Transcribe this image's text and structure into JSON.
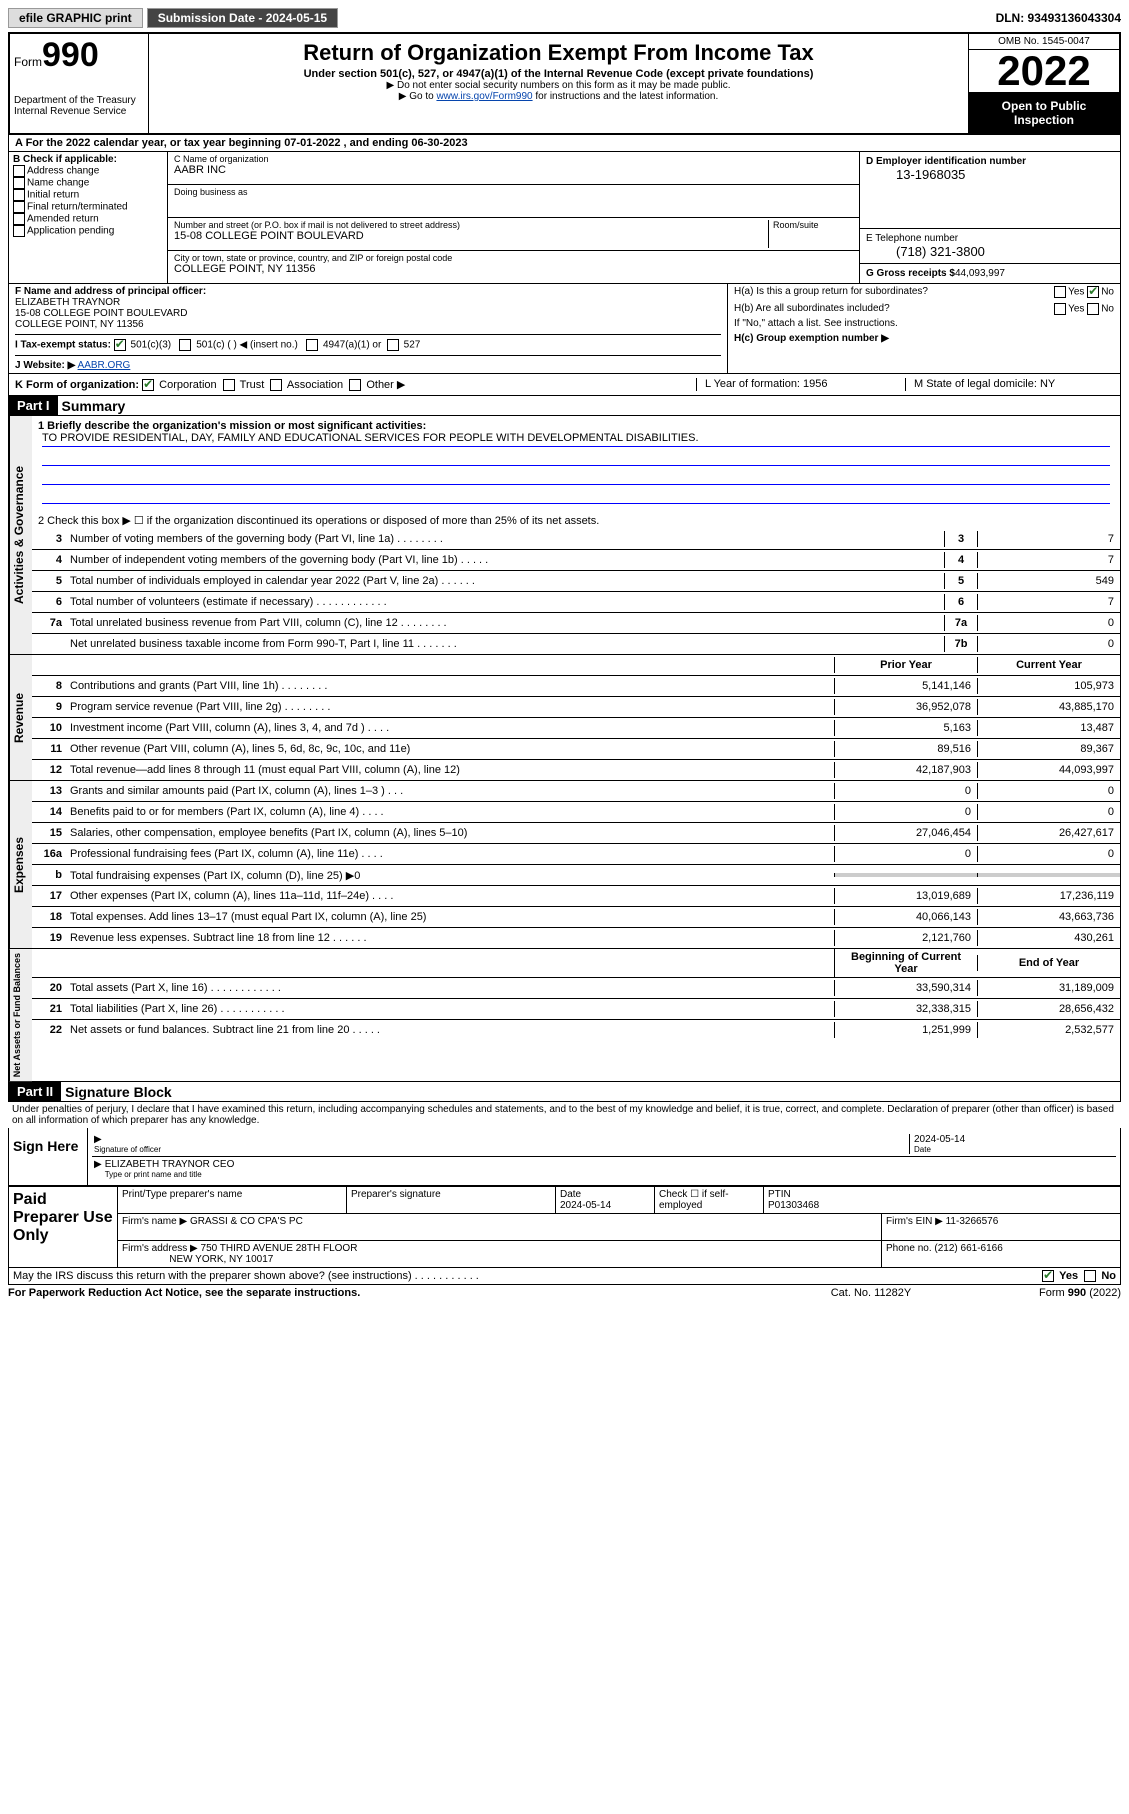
{
  "topbar": {
    "efile": "efile GRAPHIC print",
    "submission_label": "Submission Date - 2024-05-15",
    "dln": "DLN: 93493136043304"
  },
  "header": {
    "form_label": "Form",
    "form_num": "990",
    "dept": "Department of the Treasury Internal Revenue Service",
    "title": "Return of Organization Exempt From Income Tax",
    "subtitle": "Under section 501(c), 527, or 4947(a)(1) of the Internal Revenue Code (except private foundations)",
    "note1": "▶ Do not enter social security numbers on this form as it may be made public.",
    "note2_pre": "▶ Go to ",
    "note2_link": "www.irs.gov/Form990",
    "note2_post": " for instructions and the latest information.",
    "omb": "OMB No. 1545-0047",
    "year": "2022",
    "open": "Open to Public Inspection"
  },
  "row_a": "A For the 2022 calendar year, or tax year beginning 07-01-2022   , and ending 06-30-2023",
  "section_b": {
    "label": "B Check if applicable:",
    "items": [
      "Address change",
      "Name change",
      "Initial return",
      "Final return/terminated",
      "Amended return",
      "Application pending"
    ]
  },
  "section_c": {
    "name_label": "C Name of organization",
    "name": "AABR INC",
    "dba_label": "Doing business as",
    "dba": "",
    "addr_label": "Number and street (or P.O. box if mail is not delivered to street address)",
    "room_label": "Room/suite",
    "addr": "15-08 COLLEGE POINT BOULEVARD",
    "city_label": "City or town, state or province, country, and ZIP or foreign postal code",
    "city": "COLLEGE POINT, NY  11356"
  },
  "section_d": {
    "label": "D Employer identification number",
    "val": "13-1968035"
  },
  "section_e": {
    "label": "E Telephone number",
    "val": "(718) 321-3800"
  },
  "section_g": {
    "label": "G Gross receipts $",
    "val": "44,093,997"
  },
  "section_f": {
    "label": "F Name and address of principal officer:",
    "name": "ELIZABETH TRAYNOR",
    "addr1": "15-08 COLLEGE POINT BOULEVARD",
    "addr2": "COLLEGE POINT, NY  11356"
  },
  "section_h": {
    "ha": "H(a)  Is this a group return for subordinates?",
    "hb": "H(b)  Are all subordinates included?",
    "hb_note": "If \"No,\" attach a list. See instructions.",
    "hc": "H(c)  Group exemption number ▶",
    "yes": "Yes",
    "no": "No"
  },
  "status": {
    "label": "I   Tax-exempt status:",
    "opt1": "501(c)(3)",
    "opt2": "501(c) (   ) ◀ (insert no.)",
    "opt3": "4947(a)(1) or",
    "opt4": "527"
  },
  "website": {
    "label": "J   Website: ▶",
    "val": "AABR.ORG"
  },
  "korg": {
    "k_label": "K Form of organization:",
    "corp": "Corporation",
    "trust": "Trust",
    "assoc": "Association",
    "other": "Other ▶",
    "l": "L Year of formation: 1956",
    "m": "M State of legal domicile: NY"
  },
  "part1": {
    "header": "Part I",
    "title": "Summary",
    "line1_label": "1   Briefly describe the organization's mission or most significant activities:",
    "mission": "TO PROVIDE RESIDENTIAL, DAY, FAMILY AND EDUCATIONAL SERVICES FOR PEOPLE WITH DEVELOPMENTAL DISABILITIES.",
    "line2": "2   Check this box ▶ ☐  if the organization discontinued its operations or disposed of more than 25% of its net assets.",
    "sections": {
      "gov": "Activities & Governance",
      "rev": "Revenue",
      "exp": "Expenses",
      "net": "Net Assets or Fund Balances"
    },
    "one_col": [
      {
        "n": "3",
        "d": "Number of voting members of the governing body (Part VI, line 1a)   .    .    .    .    .    .    .    .",
        "b": "3",
        "v": "7"
      },
      {
        "n": "4",
        "d": "Number of independent voting members of the governing body (Part VI, line 1b)   .    .    .    .    .",
        "b": "4",
        "v": "7"
      },
      {
        "n": "5",
        "d": "Total number of individuals employed in calendar year 2022 (Part V, line 2a)   .    .    .    .    .    .",
        "b": "5",
        "v": "549"
      },
      {
        "n": "6",
        "d": "Total number of volunteers (estimate if necessary)   .    .    .    .    .    .    .    .    .    .    .    .",
        "b": "6",
        "v": "7"
      },
      {
        "n": "7a",
        "d": "Total unrelated business revenue from Part VIII, column (C), line 12   .    .    .    .    .    .    .    .",
        "b": "7a",
        "v": "0"
      },
      {
        "n": "",
        "d": "Net unrelated business taxable income from Form 990-T, Part I, line 11   .    .    .    .    .    .    .",
        "b": "7b",
        "v": "0"
      }
    ],
    "col_headers": {
      "prior": "Prior Year",
      "current": "Current Year"
    },
    "revenue": [
      {
        "n": "8",
        "d": "Contributions and grants (Part VIII, line 1h)   .    .    .    .    .    .    .    .",
        "p": "5,141,146",
        "c": "105,973"
      },
      {
        "n": "9",
        "d": "Program service revenue (Part VIII, line 2g)   .    .    .    .    .    .    .    .",
        "p": "36,952,078",
        "c": "43,885,170"
      },
      {
        "n": "10",
        "d": "Investment income (Part VIII, column (A), lines 3, 4, and 7d )   .    .    .    .",
        "p": "5,163",
        "c": "13,487"
      },
      {
        "n": "11",
        "d": "Other revenue (Part VIII, column (A), lines 5, 6d, 8c, 9c, 10c, and 11e)",
        "p": "89,516",
        "c": "89,367"
      },
      {
        "n": "12",
        "d": "Total revenue—add lines 8 through 11 (must equal Part VIII, column (A), line 12)",
        "p": "42,187,903",
        "c": "44,093,997"
      }
    ],
    "expenses": [
      {
        "n": "13",
        "d": "Grants and similar amounts paid (Part IX, column (A), lines 1–3 )   .    .    .",
        "p": "0",
        "c": "0"
      },
      {
        "n": "14",
        "d": "Benefits paid to or for members (Part IX, column (A), line 4)   .    .    .    .",
        "p": "0",
        "c": "0"
      },
      {
        "n": "15",
        "d": "Salaries, other compensation, employee benefits (Part IX, column (A), lines 5–10)",
        "p": "27,046,454",
        "c": "26,427,617"
      },
      {
        "n": "16a",
        "d": "Professional fundraising fees (Part IX, column (A), line 11e)   .    .    .    .",
        "p": "0",
        "c": "0"
      },
      {
        "n": "b",
        "d": "Total fundraising expenses (Part IX, column (D), line 25) ▶0",
        "p": "",
        "c": "",
        "shade": true
      },
      {
        "n": "17",
        "d": "Other expenses (Part IX, column (A), lines 11a–11d, 11f–24e)   .    .    .    .",
        "p": "13,019,689",
        "c": "17,236,119"
      },
      {
        "n": "18",
        "d": "Total expenses. Add lines 13–17 (must equal Part IX, column (A), line 25)",
        "p": "40,066,143",
        "c": "43,663,736"
      },
      {
        "n": "19",
        "d": "Revenue less expenses. Subtract line 18 from line 12   .    .    .    .    .    .",
        "p": "2,121,760",
        "c": "430,261"
      }
    ],
    "net_headers": {
      "begin": "Beginning of Current Year",
      "end": "End of Year"
    },
    "net": [
      {
        "n": "20",
        "d": "Total assets (Part X, line 16)   .    .    .    .    .    .    .    .    .    .    .    .",
        "p": "33,590,314",
        "c": "31,189,009"
      },
      {
        "n": "21",
        "d": "Total liabilities (Part X, line 26)   .    .    .    .    .    .    .    .    .    .    .",
        "p": "32,338,315",
        "c": "28,656,432"
      },
      {
        "n": "22",
        "d": "Net assets or fund balances. Subtract line 21 from line 20   .    .    .    .    .",
        "p": "1,251,999",
        "c": "2,532,577"
      }
    ]
  },
  "part2": {
    "header": "Part II",
    "title": "Signature Block",
    "penalty": "Under penalties of perjury, I declare that I have examined this return, including accompanying schedules and statements, and to the best of my knowledge and belief, it is true, correct, and complete. Declaration of preparer (other than officer) is based on all information of which preparer has any knowledge.",
    "sign_here": "Sign Here",
    "sig_officer": "Signature of officer",
    "sig_date": "2024-05-14",
    "date_lbl": "Date",
    "officer_name": "ELIZABETH TRAYNOR  CEO",
    "officer_lbl": "Type or print name and title",
    "paid": "Paid Preparer Use Only",
    "prep_name_lbl": "Print/Type preparer's name",
    "prep_sig_lbl": "Preparer's signature",
    "prep_date_lbl": "Date",
    "prep_date": "2024-05-14",
    "check_lbl": "Check ☐ if self-employed",
    "ptin_lbl": "PTIN",
    "ptin": "P01303468",
    "firm_name_lbl": "Firm's name    ▶",
    "firm_name": "GRASSI & CO CPA'S PC",
    "firm_ein_lbl": "Firm's EIN ▶",
    "firm_ein": "11-3266576",
    "firm_addr_lbl": "Firm's address ▶",
    "firm_addr1": "750 THIRD AVENUE 28TH FLOOR",
    "firm_addr2": "NEW YORK, NY  10017",
    "phone_lbl": "Phone no.",
    "phone": "(212) 661-6166",
    "discuss": "May the IRS discuss this return with the preparer shown above? (see instructions)   .    .    .    .    .    .    .    .    .    .    .",
    "yes": "Yes",
    "no": "No"
  },
  "bottom": {
    "left": "For Paperwork Reduction Act Notice, see the separate instructions.",
    "mid": "Cat. No. 11282Y",
    "right": "Form 990 (2022)"
  }
}
